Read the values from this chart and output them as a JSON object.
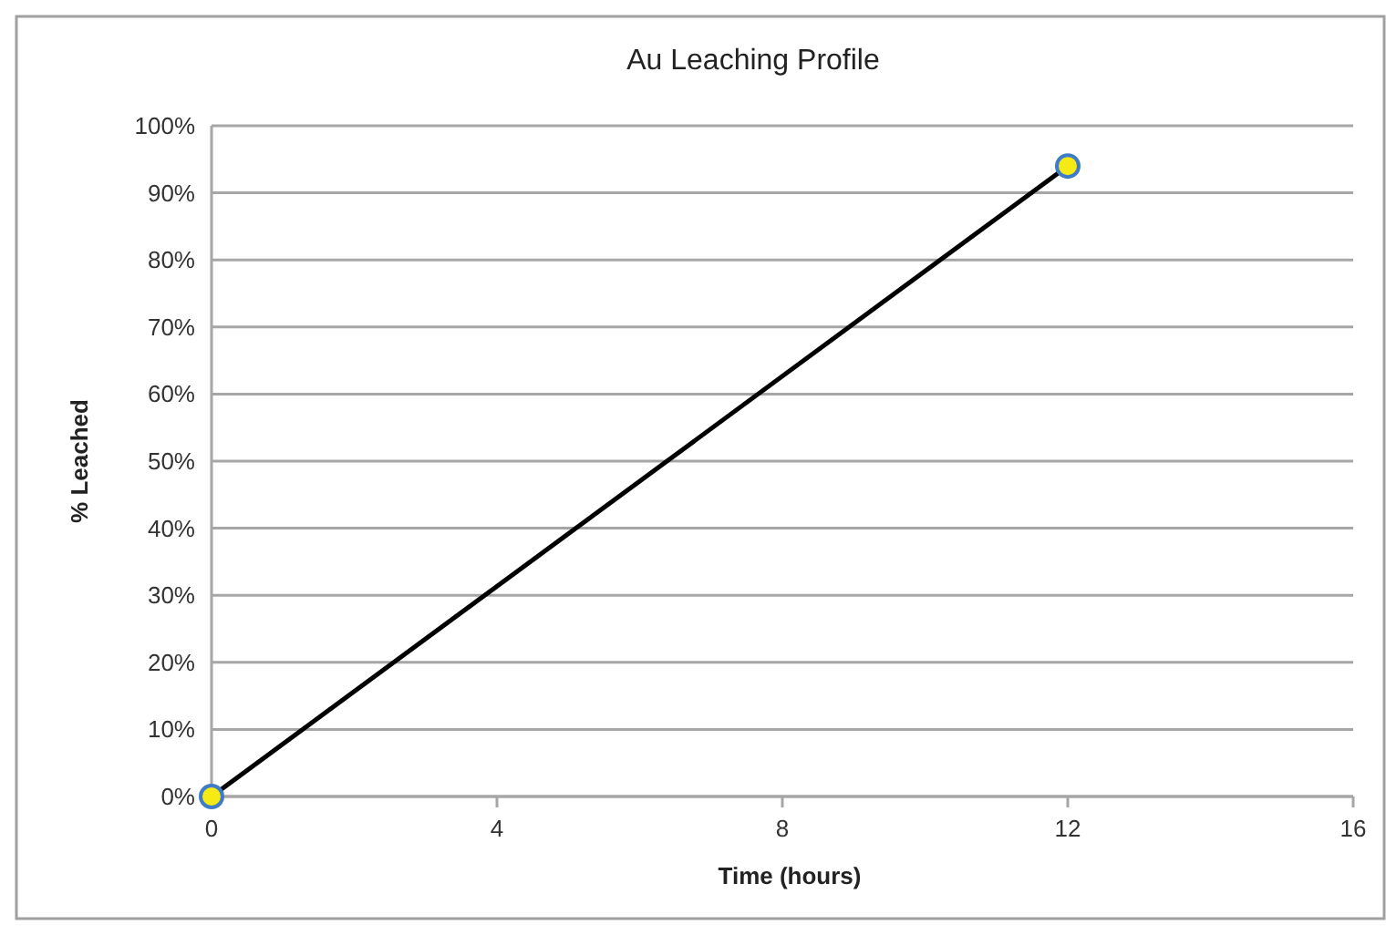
{
  "chart_data": {
    "type": "line",
    "title": "Au Leaching Profile",
    "xlabel": "Time (hours)",
    "ylabel": "% Leached",
    "x": [
      0,
      12
    ],
    "series": [
      {
        "color": "#000000",
        "values": [
          0,
          94
        ]
      }
    ],
    "xlim": [
      0,
      16
    ],
    "xticks": [
      0,
      4,
      8,
      12,
      16
    ],
    "ylim": [
      0,
      100
    ],
    "yticks": [
      {
        "value": 0,
        "label": "0%"
      },
      {
        "value": 10,
        "label": "10%"
      },
      {
        "value": 20,
        "label": "20%"
      },
      {
        "value": 30,
        "label": "30%"
      },
      {
        "value": 40,
        "label": "40%"
      },
      {
        "value": 50,
        "label": "50%"
      },
      {
        "value": 60,
        "label": "60%"
      },
      {
        "value": 70,
        "label": "70%"
      },
      {
        "value": 80,
        "label": "80%"
      },
      {
        "value": 90,
        "label": "90%"
      },
      {
        "value": 100,
        "label": "100%"
      }
    ],
    "grid": "y",
    "marker": "circle"
  }
}
